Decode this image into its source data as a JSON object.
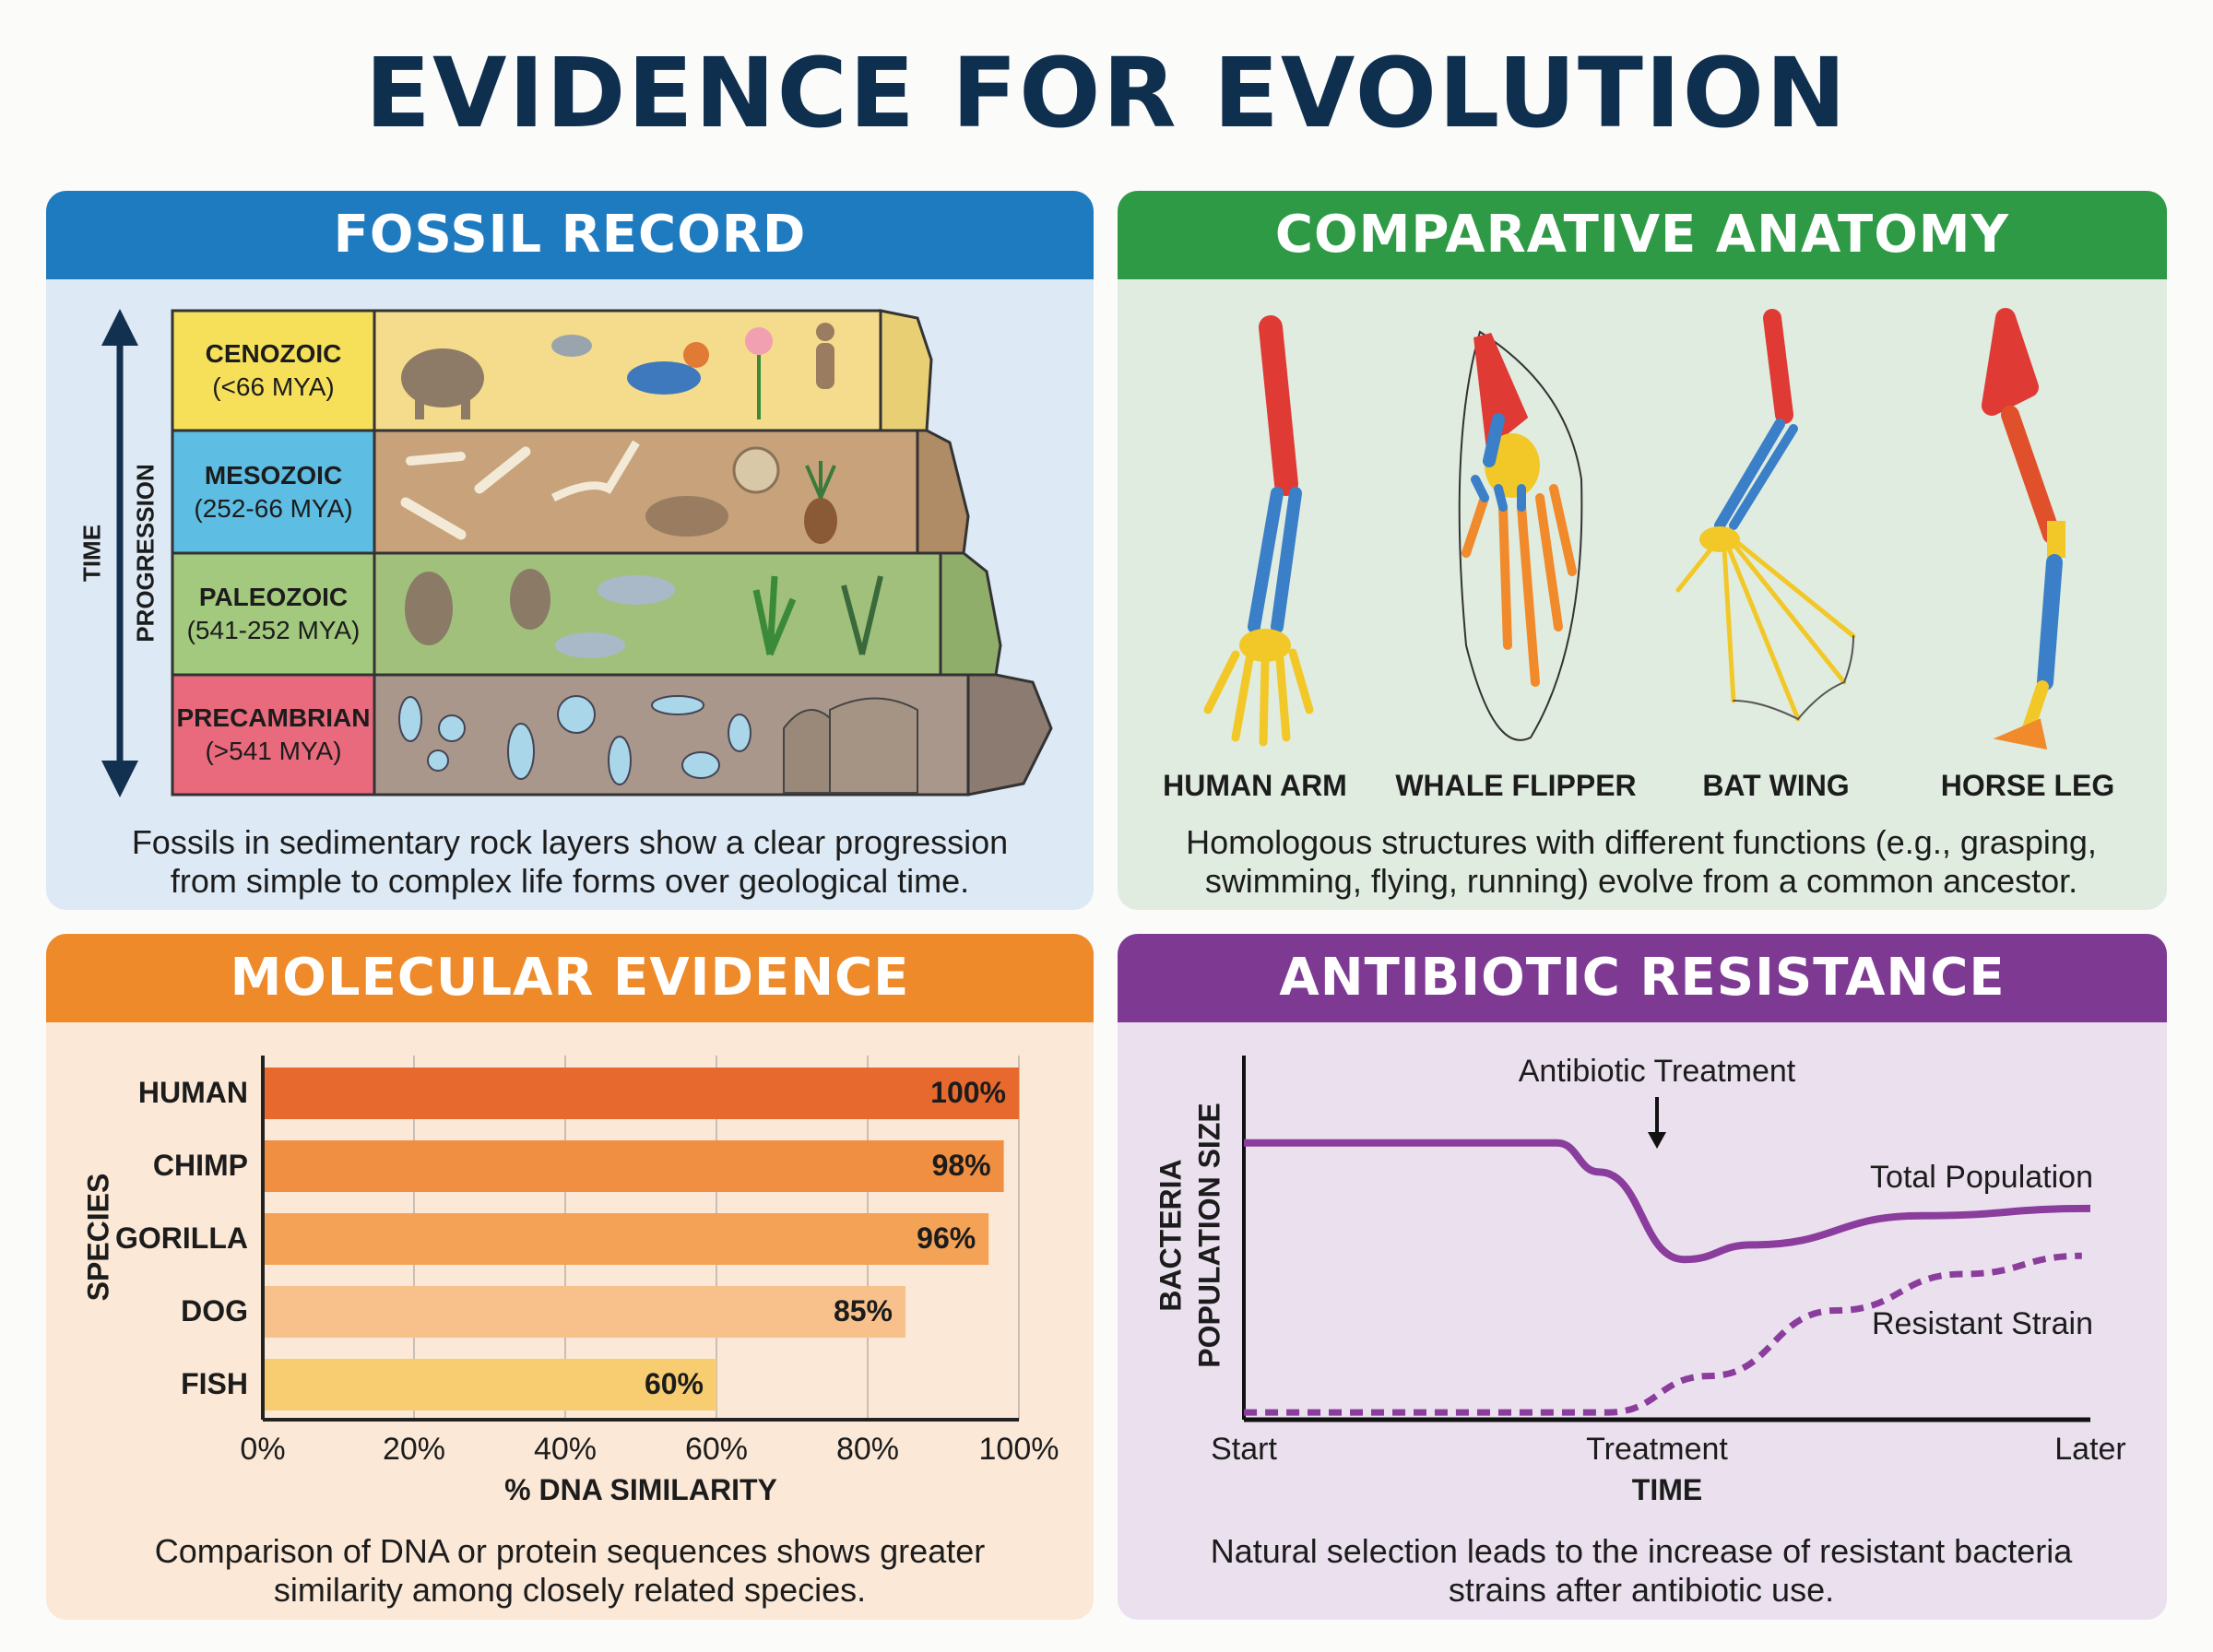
{
  "title": "EVIDENCE FOR EVOLUTION",
  "colors": {
    "title": "#0f2f4f",
    "fossil": "#1f7bbf",
    "anatomy": "#2f9a45",
    "molecular": "#ee8a2a",
    "antibiotic": "#7e3a93"
  },
  "fossil_record": {
    "header": "FOSSIL RECORD",
    "axis_label_1": "TIME",
    "axis_label_2": "PROGRESSION",
    "eras": [
      {
        "name": "CENOZOIC",
        "range": "(<66 MYA)",
        "color": "#f6e05a",
        "fossils": [
          "elephant",
          "dove",
          "bird",
          "flower",
          "human"
        ]
      },
      {
        "name": "MESOZOIC",
        "range": "(252-66 MYA)",
        "color": "#5dbde2",
        "fossils": [
          "bones",
          "dinosaur-skeleton",
          "ammonite",
          "mammal",
          "cycad"
        ]
      },
      {
        "name": "PALEOZOIC",
        "range": "(541-252 MYA)",
        "color": "#a3c97e",
        "fossils": [
          "trilobite",
          "trilobite",
          "fish",
          "fish",
          "seaweed",
          "fern"
        ]
      },
      {
        "name": "PRECAMBRIAN",
        "range": "(>541 MYA)",
        "color": "#e96a7c",
        "fossils": [
          "bacteria",
          "stromatolites"
        ]
      }
    ],
    "caption": "Fossils in sedimentary rock layers show a clear progression from simple to complex life forms over geological time."
  },
  "comparative_anatomy": {
    "header": "COMPARATIVE ANATOMY",
    "limbs": [
      "HUMAN ARM",
      "WHALE FLIPPER",
      "BAT WING",
      "HORSE LEG"
    ],
    "caption": "Homologous structures with different functions (e.g., grasping, swimming, flying, running) evolve from a common ancestor."
  },
  "molecular_evidence": {
    "header": "MOLECULAR EVIDENCE",
    "caption": "Comparison of DNA or protein sequences shows greater similarity among closely related species."
  },
  "antibiotic_resistance": {
    "header": "ANTIBIOTIC RESISTANCE",
    "caption": "Natural selection leads to the increase of resistant bacteria strains after antibiotic use."
  },
  "chart_data": [
    {
      "type": "bar",
      "orientation": "horizontal",
      "categories": [
        "HUMAN",
        "CHIMP",
        "GORILLA",
        "DOG",
        "FISH"
      ],
      "values": [
        100,
        98,
        96,
        85,
        60
      ],
      "data_labels": [
        "100%",
        "98%",
        "96%",
        "85%",
        "60%"
      ],
      "bar_colors": [
        "#e8692e",
        "#f08f41",
        "#f4a256",
        "#f8c18c",
        "#f8cd72"
      ],
      "xlabel": "% DNA SIMILARITY",
      "ylabel": "SPECIES",
      "xlim": [
        0,
        100
      ],
      "xticks": [
        "0%",
        "20%",
        "40%",
        "60%",
        "80%",
        "100%"
      ],
      "grid": true
    },
    {
      "type": "line",
      "xlabel": "TIME",
      "ylabel_line1": "BACTERIA",
      "ylabel_line2": "POPULATION SIZE",
      "xticks": [
        "Start",
        "Treatment",
        "Later"
      ],
      "annotation": "Antibiotic Treatment",
      "series": [
        {
          "name": "Total Population",
          "style": "solid",
          "color": "#8a3d9c",
          "points": [
            [
              0,
              76
            ],
            [
              37,
              76
            ],
            [
              42,
              68
            ],
            [
              52,
              44
            ],
            [
              60,
              48
            ],
            [
              80,
              56
            ],
            [
              100,
              58
            ]
          ]
        },
        {
          "name": "Resistant Strain",
          "style": "dashed",
          "color": "#8a3d9c",
          "points": [
            [
              0,
              2
            ],
            [
              43,
              2
            ],
            [
              55,
              12
            ],
            [
              70,
              30
            ],
            [
              85,
              40
            ],
            [
              99,
              45
            ]
          ]
        }
      ]
    }
  ]
}
